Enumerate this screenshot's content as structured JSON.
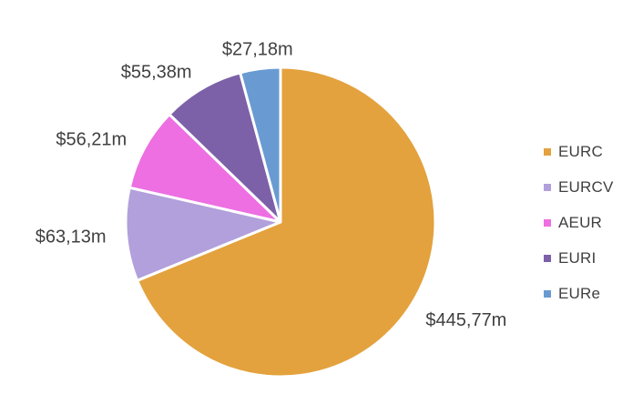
{
  "chart_data": {
    "type": "pie",
    "categories": [
      "EURC",
      "EURCV",
      "AEUR",
      "EURI",
      "EURe"
    ],
    "values": [
      445.77,
      63.13,
      56.21,
      55.38,
      27.18
    ],
    "value_labels": [
      "$445,77m",
      "$63,13m",
      "$56,21m",
      "$55,38m",
      "$27,18m"
    ],
    "colors": [
      "#E3A23D",
      "#B1A0DB",
      "#ED6FE2",
      "#7C61A8",
      "#699BD2"
    ],
    "slice_border_color": "#FFFFFF",
    "label_color": "#404040",
    "start_angle": "top",
    "direction": "clockwise",
    "legend": {
      "position": "right",
      "entries": [
        "EURC",
        "EURCV",
        "AEUR",
        "EURI",
        "EURe"
      ]
    }
  }
}
